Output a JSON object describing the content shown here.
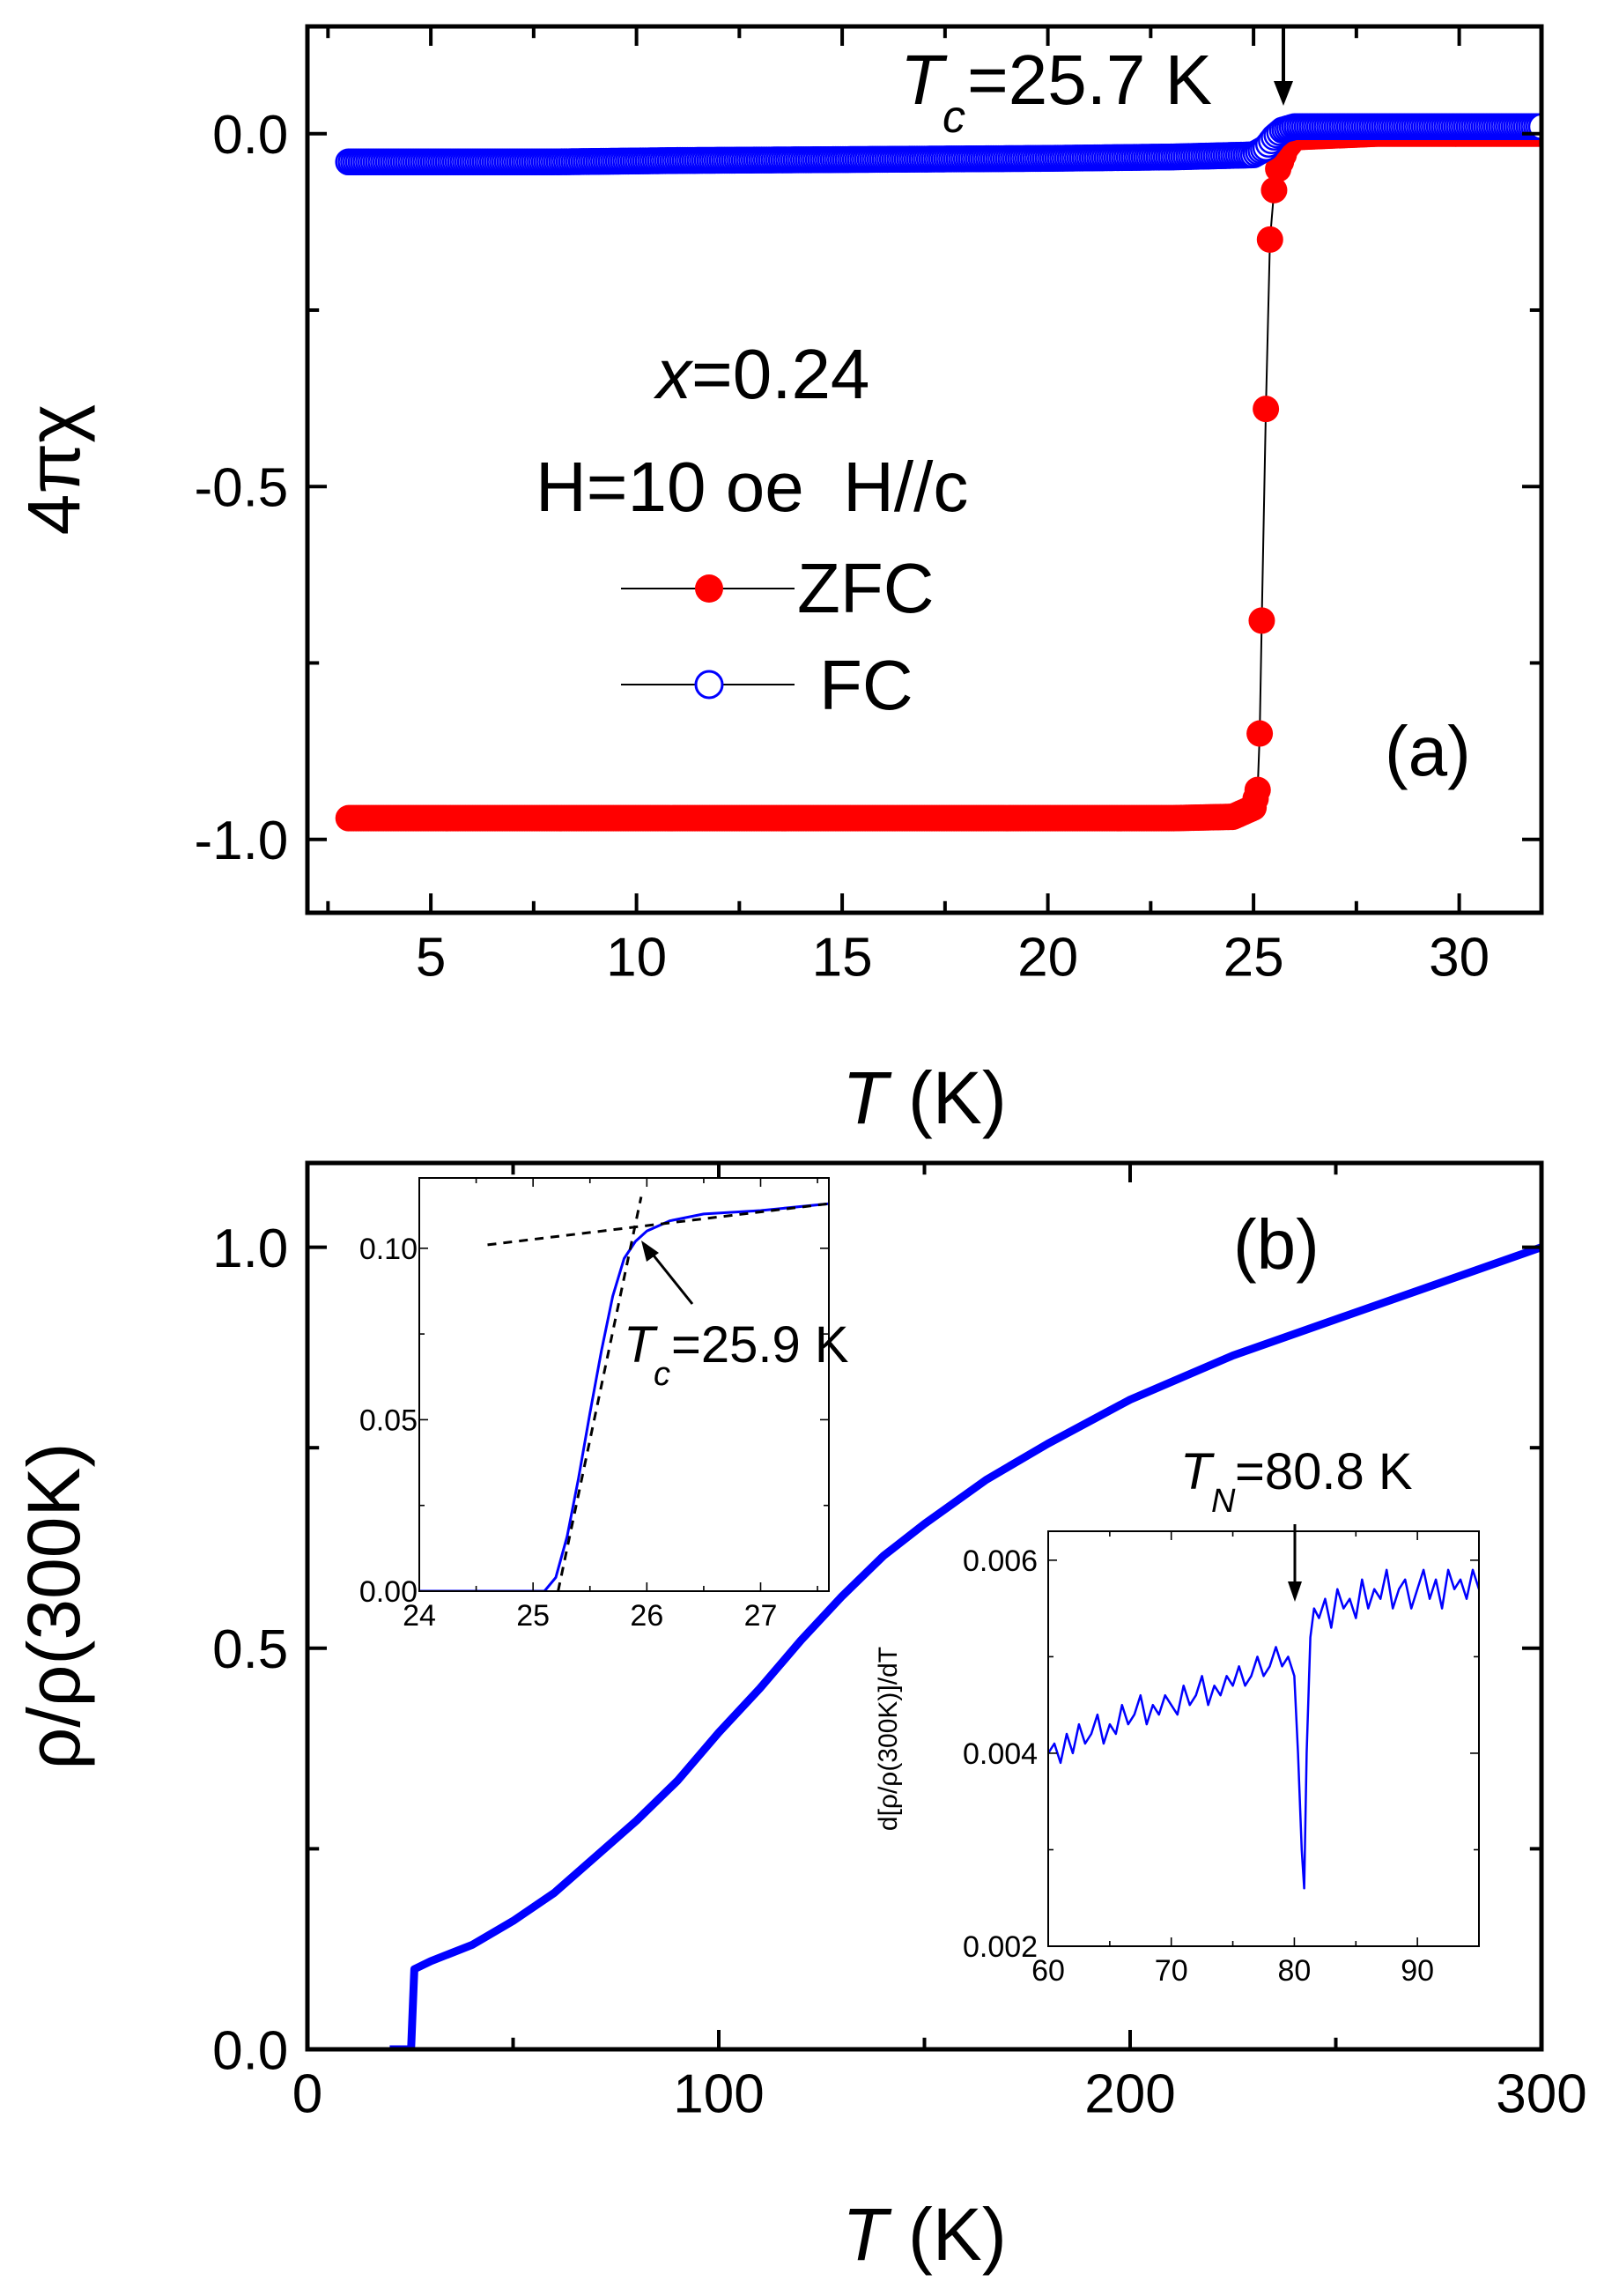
{
  "chart_data": [
    {
      "id": "a",
      "type": "scatter",
      "panel_label": "(a)",
      "xlabel_italic": "T",
      "xlabel_rest": " (K)",
      "ylabel": "4πχ",
      "xlim": [
        2,
        32
      ],
      "ylim": [
        -1.104,
        0.152
      ],
      "xticks": [
        5,
        10,
        15,
        20,
        25,
        30
      ],
      "xtick_labels": [
        "5",
        "10",
        "15",
        "20",
        "25",
        "30"
      ],
      "yticks": [
        0.0,
        -0.5,
        -1.0
      ],
      "ytick_labels": [
        "0.0",
        "-0.5",
        "-1.0"
      ],
      "annotations": {
        "tc_T": "T",
        "tc_sub": "c",
        "tc_rest": "=25.7 K",
        "x_italic": "x",
        "x_rest": "=0.24",
        "field": "H=10 oe  H//c"
      },
      "legend": [
        {
          "label": "ZFC",
          "marker": "filled-circle",
          "color": "#ff0000"
        },
        {
          "label": "FC",
          "marker": "open-circle",
          "color": "#0000ff"
        }
      ],
      "series": [
        {
          "name": "ZFC",
          "color": "#ff0000",
          "x": [
            3,
            5,
            8,
            11,
            14,
            17,
            20,
            23,
            24.5,
            25.0,
            25.1,
            25.15,
            25.2,
            25.3,
            25.4,
            25.5,
            25.6,
            25.8,
            26,
            28,
            30,
            32
          ],
          "y": [
            -0.97,
            -0.97,
            -0.97,
            -0.97,
            -0.97,
            -0.97,
            -0.97,
            -0.97,
            -0.968,
            -0.955,
            -0.93,
            -0.85,
            -0.69,
            -0.39,
            -0.15,
            -0.08,
            -0.05,
            -0.02,
            -0.005,
            0.0,
            0.0,
            0.0
          ]
        },
        {
          "name": "FC",
          "color": "#0000ff",
          "x": [
            3,
            5,
            8,
            11,
            14,
            17,
            20,
            23,
            25,
            25.3,
            25.5,
            25.7,
            26,
            28,
            30,
            32
          ],
          "y": [
            -0.04,
            -0.04,
            -0.04,
            -0.038,
            -0.037,
            -0.036,
            -0.035,
            -0.033,
            -0.03,
            -0.02,
            -0.005,
            0.005,
            0.01,
            0.01,
            0.01,
            0.01
          ]
        }
      ]
    },
    {
      "id": "b",
      "type": "line",
      "panel_label": "(b)",
      "xlabel_italic": "T",
      "xlabel_rest": " (K)",
      "ylabel": "ρ/ρ(300K)",
      "xlim": [
        0,
        300
      ],
      "ylim": [
        0,
        1.105
      ],
      "xticks": [
        0,
        100,
        200,
        300
      ],
      "xtick_labels": [
        "0",
        "100",
        "200",
        "300"
      ],
      "yticks": [
        0.0,
        0.5,
        1.0
      ],
      "ytick_labels": [
        "0.0",
        "0.5",
        "1.0"
      ],
      "series": [
        {
          "name": "resistivity",
          "color": "#0000ff",
          "x": [
            20,
            25.2,
            25.9,
            26,
            30,
            40,
            50,
            60,
            70,
            80,
            90,
            100,
            110,
            120,
            130,
            140,
            150,
            165,
            180,
            200,
            225,
            250,
            275,
            300
          ],
          "y": [
            0,
            0,
            0.09,
            0.1,
            0.11,
            0.13,
            0.16,
            0.195,
            0.24,
            0.285,
            0.335,
            0.395,
            0.45,
            0.51,
            0.565,
            0.615,
            0.655,
            0.71,
            0.755,
            0.81,
            0.865,
            0.91,
            0.955,
            1.0
          ]
        }
      ]
    },
    {
      "id": "b-inset-tc",
      "type": "line",
      "xlim": [
        24,
        27.6
      ],
      "ylim": [
        0,
        0.1205
      ],
      "xticks": [
        24,
        25,
        26,
        27
      ],
      "xtick_labels": [
        "24",
        "25",
        "26",
        "27"
      ],
      "yticks": [
        0.0,
        0.05,
        0.1
      ],
      "ytick_labels": [
        "0.00",
        "0.05",
        "0.10"
      ],
      "annotations": {
        "tc_T": "T",
        "tc_sub": "c",
        "tc_rest": "=25.9 K"
      },
      "series": [
        {
          "name": "resistivity",
          "color": "#0000ff",
          "x": [
            24,
            25.1,
            25.2,
            25.3,
            25.4,
            25.5,
            25.6,
            25.7,
            25.8,
            25.9,
            26.0,
            26.2,
            26.5,
            27.0,
            27.6
          ],
          "y": [
            0,
            0,
            0.004,
            0.016,
            0.033,
            0.052,
            0.07,
            0.086,
            0.097,
            0.102,
            0.105,
            0.108,
            0.11,
            0.111,
            0.113
          ]
        },
        {
          "name": "normal-state-fit",
          "color": "#000000",
          "dashed": true,
          "x": [
            24.6,
            27.6
          ],
          "y": [
            0.101,
            0.113
          ]
        },
        {
          "name": "transition-fit",
          "color": "#000000",
          "dashed": true,
          "x": [
            25.22,
            25.95
          ],
          "y": [
            0.0,
            0.115
          ]
        }
      ]
    },
    {
      "id": "b-inset-deriv",
      "type": "line",
      "ylabel": "d[ρ/ρ(300K)]/dT",
      "xlim": [
        60,
        95
      ],
      "ylim": [
        0.002,
        0.0063
      ],
      "xticks": [
        60,
        70,
        80,
        90
      ],
      "xtick_labels": [
        "60",
        "70",
        "80",
        "90"
      ],
      "yticks": [
        0.002,
        0.004,
        0.006
      ],
      "ytick_labels": [
        "0.002",
        "0.004",
        "0.006"
      ],
      "annotations": {
        "tn_T": "T",
        "tn_sub": "N",
        "tn_rest": "=80.8 K"
      },
      "series": [
        {
          "name": "derivative",
          "color": "#0000ff",
          "x": [
            60,
            60.5,
            61,
            61.5,
            62,
            62.5,
            63,
            63.5,
            64,
            64.5,
            65,
            65.5,
            66,
            66.5,
            67,
            67.5,
            68,
            68.5,
            69,
            69.5,
            70,
            70.5,
            71,
            71.5,
            72,
            72.5,
            73,
            73.5,
            74,
            74.5,
            75,
            75.5,
            76,
            76.5,
            77,
            77.5,
            78,
            78.5,
            79,
            79.5,
            80,
            80.3,
            80.6,
            80.8,
            81,
            81.3,
            81.6,
            82,
            82.5,
            83,
            83.5,
            84,
            84.5,
            85,
            85.5,
            86,
            86.5,
            87,
            87.5,
            88,
            88.5,
            89,
            89.5,
            90,
            90.5,
            91,
            91.5,
            92,
            92.5,
            93,
            93.5,
            94,
            94.5,
            95
          ],
          "y": [
            0.004,
            0.0041,
            0.0039,
            0.0042,
            0.004,
            0.0043,
            0.0041,
            0.0042,
            0.0044,
            0.0041,
            0.0043,
            0.0042,
            0.0045,
            0.0043,
            0.0044,
            0.0046,
            0.0043,
            0.0045,
            0.0044,
            0.0046,
            0.0045,
            0.0044,
            0.0047,
            0.0045,
            0.0046,
            0.0048,
            0.0045,
            0.0047,
            0.0046,
            0.0048,
            0.0047,
            0.0049,
            0.0047,
            0.0048,
            0.005,
            0.0048,
            0.0049,
            0.0051,
            0.0049,
            0.005,
            0.0048,
            0.004,
            0.003,
            0.0026,
            0.004,
            0.0052,
            0.0055,
            0.0054,
            0.0056,
            0.0053,
            0.0057,
            0.0055,
            0.0056,
            0.0054,
            0.0058,
            0.0055,
            0.0057,
            0.0056,
            0.0059,
            0.0055,
            0.0057,
            0.0058,
            0.0055,
            0.0057,
            0.0059,
            0.0056,
            0.0058,
            0.0055,
            0.0059,
            0.0057,
            0.0058,
            0.0056,
            0.0059,
            0.0057
          ]
        }
      ]
    }
  ]
}
